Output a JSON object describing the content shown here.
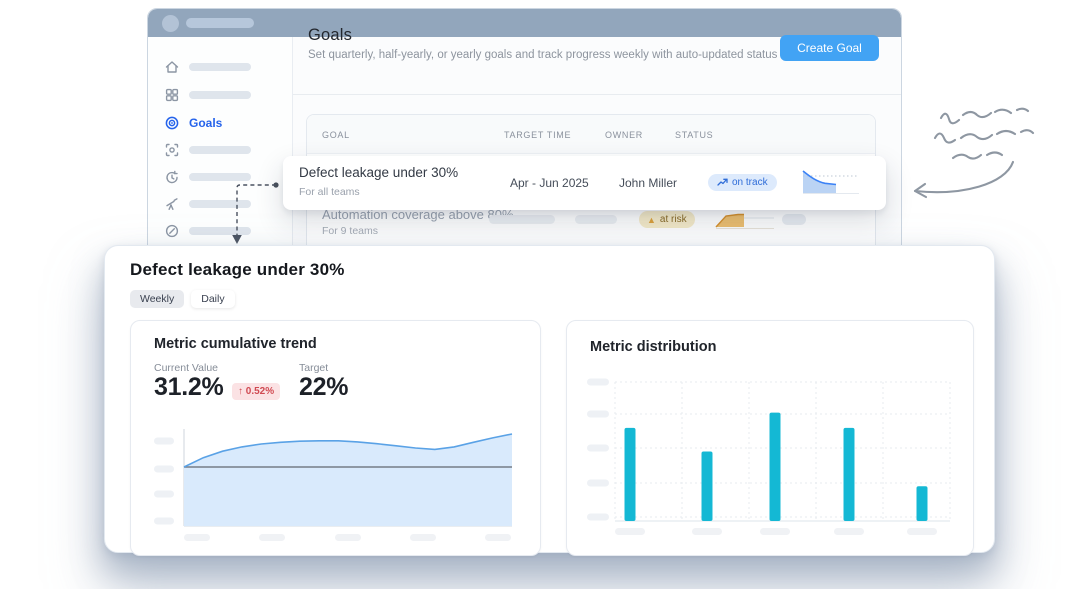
{
  "sidebar": {
    "goals_label": "Goals"
  },
  "header": {
    "title": "Goals",
    "subtitle": "Set quarterly, half-yearly, or yearly goals and track progress weekly with auto-updated status",
    "create_button": "Create Goal"
  },
  "table": {
    "columns": [
      "GOAL",
      "TARGET TIME",
      "OWNER",
      "STATUS"
    ]
  },
  "rows": {
    "defect": {
      "title": "Defect leakage under 30%",
      "subtitle": "For all teams",
      "target_time": "Apr - Jun 2025",
      "owner": "John Miller",
      "status": "on track"
    },
    "automation": {
      "title": "Automation coverage above 80%",
      "subtitle": "For 9 teams",
      "status": "at risk"
    }
  },
  "panel": {
    "title": "Defect leakage under 30%",
    "tabs": {
      "weekly": "Weekly",
      "daily": "Daily"
    },
    "trend": {
      "title": "Metric cumulative trend",
      "current_label": "Current Value",
      "current_value": "31.2%",
      "delta": "↑ 0.52%",
      "target_label": "Target",
      "target_value": "22%"
    },
    "distribution": {
      "title": "Metric distribution"
    }
  },
  "colors": {
    "titlebar": "#92A6BC",
    "accent_blue": "#42A3F4",
    "link_blue": "#2563EB",
    "bar_cyan": "#14B8D4",
    "area_fill": "#D9EAFC",
    "area_line": "#5AA2E6",
    "target_line": "#767D87",
    "on_track_bg": "#DDEAFC",
    "on_track_text": "#2E6CD8",
    "at_risk_bg": "#F7ECCA",
    "at_risk_text": "#8B6C26",
    "delta_bg": "#FBE2E4",
    "delta_text": "#D04A52"
  },
  "chart_data": [
    {
      "type": "area",
      "title": "Metric cumulative trend",
      "current": 31.2,
      "target": 22,
      "values": [
        22.0,
        24.6,
        26.4,
        27.6,
        28.4,
        28.9,
        29.2,
        29.3,
        29.3,
        29.0,
        28.5,
        27.9,
        27.3,
        26.9,
        27.6,
        28.9,
        30.1,
        31.2
      ],
      "xlabel": "",
      "ylabel": "",
      "tick_labels": "placeholder-bars (no text shown)",
      "grid": false,
      "annotations": [
        "horizontal target line at 22"
      ]
    },
    {
      "type": "bar",
      "title": "Metric distribution",
      "categories": [
        "",
        "",
        "",
        "",
        ""
      ],
      "values": [
        67,
        50,
        78,
        67,
        25
      ],
      "ylim": [
        0,
        100
      ],
      "tick_labels": "placeholder-bars (no text shown)",
      "grid": "dashed"
    }
  ]
}
